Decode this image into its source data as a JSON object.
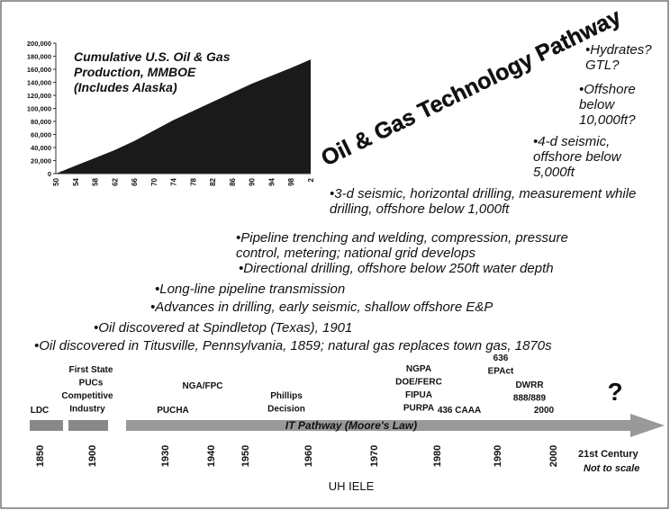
{
  "chart_data": {
    "type": "area",
    "title": "Cumulative U.S. Oil & Gas Production, MMBOE (Includes Alaska)",
    "categories": [
      "50",
      "54",
      "58",
      "62",
      "66",
      "70",
      "74",
      "78",
      "82",
      "86",
      "90",
      "94",
      "98",
      "2"
    ],
    "values": [
      0,
      12000,
      24000,
      36000,
      50000,
      66000,
      82000,
      96000,
      110000,
      124000,
      138000,
      150000,
      162000,
      175000
    ],
    "color": "#1a1a1a",
    "ylim": [
      0,
      200000
    ],
    "yticks": [
      0,
      {
        "value": 20000,
        "label": "20,000"
      },
      {
        "value": 40000,
        "label": "40,000"
      },
      {
        "value": 60000,
        "label": "60,000"
      },
      {
        "value": 80000,
        "label": "80,000"
      },
      {
        "value": 100000,
        "label": "100,000"
      },
      {
        "value": 120000,
        "label": "120,000"
      },
      {
        "value": 140000,
        "label": "140,000"
      },
      {
        "value": 160000,
        "label": "160,000"
      },
      {
        "value": 180000,
        "label": "180,000"
      },
      {
        "value": 200000,
        "label": "200,000"
      }
    ]
  },
  "slide": {
    "heading": "Oil & Gas Technology Pathway",
    "bullets": [
      "•Hydrates? GTL?",
      "•Offshore below 10,000ft?",
      "•4-d seismic, offshore below 5,000ft",
      "•3-d seismic, horizontal drilling, measurement while drilling, offshore below 1,000ft",
      "•Pipeline trenching and welding, compression, pressure control, metering; national grid develops",
      "•Directional drilling, offshore below 250ft water depth",
      "•Long-line pipeline transmission",
      "•Advances in drilling, early seismic, shallow offshore E&P",
      "•Oil  discovered at Spindletop (Texas), 1901",
      "•Oil  discovered in Titusville, Pennsylvania, 1859; natural gas replaces town gas, 1870s"
    ],
    "events": [
      [
        "First State",
        "PUCs"
      ],
      [
        "Competitive",
        "Industry"
      ],
      [
        "LDC"
      ],
      [
        "NGA/FPC"
      ],
      [
        "PUCHA"
      ],
      [
        "Phillips",
        "Decision"
      ],
      [
        "NGPA",
        "DOE/FERC",
        "FIPUA",
        "PURPA"
      ],
      [
        "636",
        "EPAct"
      ],
      [
        "DWRR",
        "888/889"
      ],
      [
        "436 CAAA"
      ],
      [
        "2000"
      ]
    ],
    "question": "?",
    "pathway": "IT Pathway (Moore's Law)",
    "years": [
      "1850",
      "1900",
      "1930",
      "1940",
      "1950",
      "1960",
      "1970",
      "1980",
      "1990",
      "2000"
    ],
    "century": "21st Century",
    "scale_note": "Not to scale",
    "footer": "UH IELE"
  }
}
